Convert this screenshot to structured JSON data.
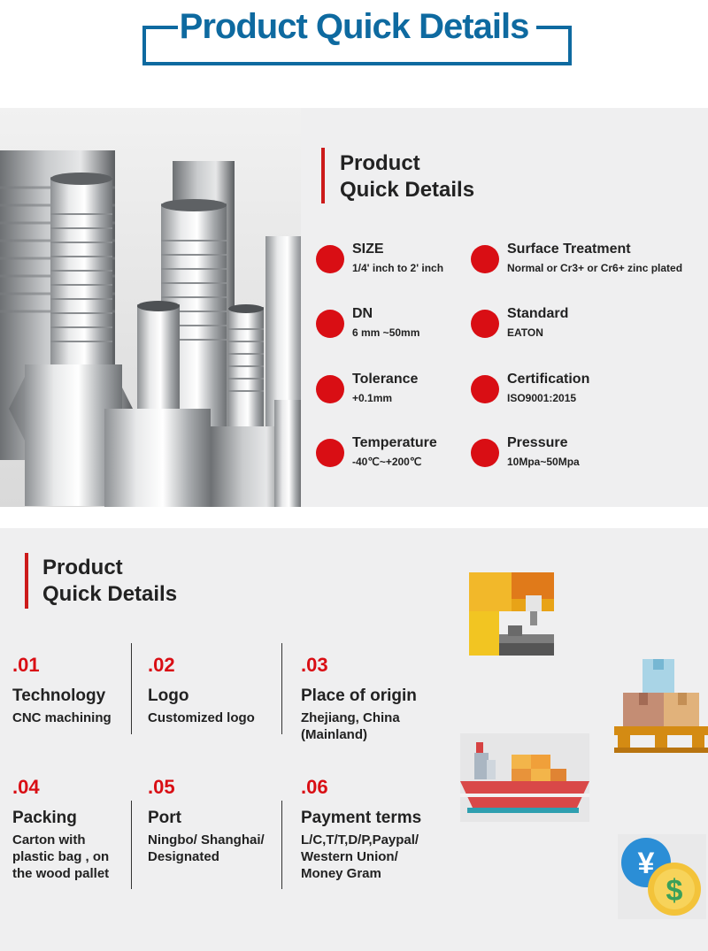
{
  "header": {
    "title": "Product Quick Details"
  },
  "section1": {
    "title_line1": "Product",
    "title_line2": "Quick Details",
    "specs": [
      {
        "label": "SIZE",
        "value": "1/4' inch to 2' inch"
      },
      {
        "label": "Surface Treatment",
        "value": "Normal or Cr3+ or Cr6+ zinc plated"
      },
      {
        "label": "DN",
        "value": "6 mm ~50mm"
      },
      {
        "label": "Standard",
        "value": "EATON"
      },
      {
        "label": "Tolerance",
        "value": "+0.1mm"
      },
      {
        "label": "Certification",
        "value": "ISO9001:2015"
      },
      {
        "label": "Temperature",
        "value": "-40℃~+200℃"
      },
      {
        "label": "Pressure",
        "value": "10Mpa~50Mpa"
      }
    ]
  },
  "section2": {
    "title_line1": "Product",
    "title_line2": "Quick Details",
    "items": [
      {
        "num": ".01",
        "label": "Technology",
        "value": "CNC machining"
      },
      {
        "num": ".02",
        "label": "Logo",
        "value": "Customized logo"
      },
      {
        "num": ".03",
        "label": "Place of origin",
        "value": "Zhejiang, China\n(Mainland)"
      },
      {
        "num": ".04",
        "label": "Packing",
        "value": "Carton with\nplastic bag , on\nthe wood pallet"
      },
      {
        "num": ".05",
        "label": "Port",
        "value": "Ningbo/ Shanghai/\nDesignated"
      },
      {
        "num": ".06",
        "label": "Payment  terms",
        "value": "L/C,T/T,D/P,Paypal/\nWestern  Union/\nMoney  Gram"
      }
    ]
  },
  "icons": [
    "cnc-machine-icon",
    "pallet-boxes-icon",
    "cargo-ship-icon",
    "currency-coins-icon"
  ],
  "colors": {
    "brand_blue": "#0e6aa0",
    "accent_red": "#d90e14",
    "panel_bg": "#efeff0"
  }
}
